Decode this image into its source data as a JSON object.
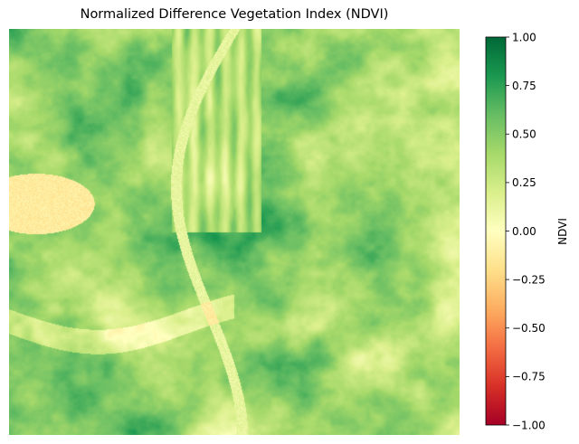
{
  "chart_data": {
    "type": "heatmap",
    "title": "Normalized Difference Vegetation Index (NDVI)",
    "colorbar": {
      "label": "NDVI",
      "colormap": "RdYlGn",
      "range": [
        -1.0,
        1.0
      ],
      "ticks": [
        {
          "value": 1.0,
          "label": "1.00"
        },
        {
          "value": 0.75,
          "label": "0.75"
        },
        {
          "value": 0.5,
          "label": "0.50"
        },
        {
          "value": 0.25,
          "label": "0.25"
        },
        {
          "value": 0.0,
          "label": "0.00"
        },
        {
          "value": -0.25,
          "label": "−0.25"
        },
        {
          "value": -0.5,
          "label": "−0.50"
        },
        {
          "value": -0.75,
          "label": "−0.75"
        },
        {
          "value": -1.0,
          "label": "−1.00"
        }
      ],
      "colors": [
        "#a50026",
        "#d73027",
        "#f46d43",
        "#fdae61",
        "#fee08b",
        "#ffffbf",
        "#d9ef8b",
        "#a6d96a",
        "#66bd63",
        "#1a9850",
        "#006837"
      ]
    },
    "axes_visible": false,
    "grid": false
  }
}
